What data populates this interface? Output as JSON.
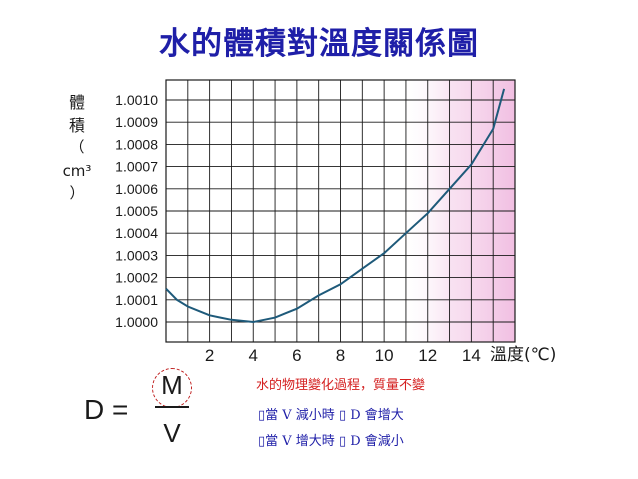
{
  "title": "水的體積對溫度關係圖",
  "chart_data": {
    "type": "line",
    "x_ticks": [
      2,
      4,
      6,
      8,
      10,
      12,
      14
    ],
    "y_ticks": [
      "1.0000",
      "1.0001",
      "1.0002",
      "1.0003",
      "1.0004",
      "1.0005",
      "1.0006",
      "1.0007",
      "1.0008",
      "1.0009",
      "1.0010"
    ],
    "xlim": [
      0,
      16
    ],
    "ylim": [
      1.0,
      1.0011
    ],
    "xlabel": "溫度(℃)",
    "ylabel": "體積(cm³)",
    "ylabel_parts": [
      "體",
      "積",
      "（",
      "cm³",
      "）"
    ],
    "grid": true,
    "series": [
      {
        "x": [
          0,
          0.5,
          1,
          1.5,
          2,
          2.5,
          3,
          3.5,
          4,
          4.5,
          5,
          5.5,
          6,
          7,
          8,
          9,
          10,
          11,
          12,
          13,
          14,
          15,
          15.5
        ],
        "y": [
          1.00015,
          1.0001,
          1.00007,
          1.00005,
          1.00003,
          1.00002,
          1.00001,
          1.000005,
          1.0,
          1.00001,
          1.00002,
          1.00004,
          1.00006,
          1.00012,
          1.00017,
          1.00024,
          1.00031,
          1.0004,
          1.00049,
          1.0006,
          1.00071,
          1.00087,
          1.00105
        ]
      }
    ],
    "colors": {
      "line": "#1e5a7a",
      "grid": "#1a1a1a",
      "shade": "#f7d2ec"
    }
  },
  "formula": {
    "d": "D",
    "equals": "=",
    "m": "M",
    "v": "V"
  },
  "notes": {
    "line1": "水的物理變化過程，質量不變",
    "line2": "▯當 V 減小時 ▯ D 會增大",
    "line3": "▯當 V 增大時 ▯ D 會減小"
  }
}
